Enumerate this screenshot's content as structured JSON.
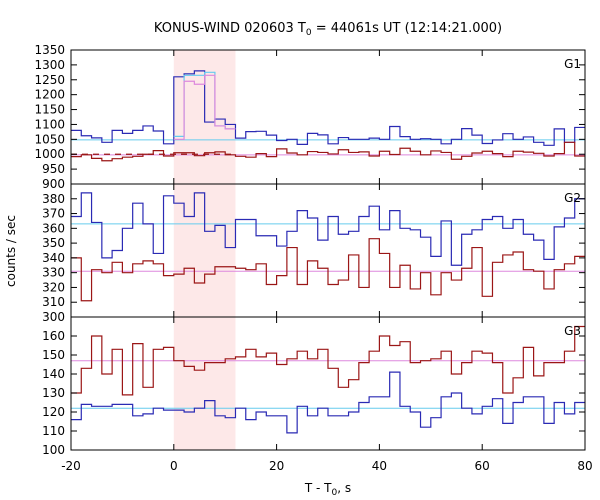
{
  "chart_data": {
    "type": "line",
    "title_prefix": "KONUS-WIND 020603 T",
    "title_sub": "0",
    "title_suffix": " = 44061s UT (12:14:21.000)",
    "xlabel_prefix": "T - T",
    "xlabel_sub": "0",
    "xlabel_suffix": ", s",
    "ylabel": "counts / sec",
    "xlim": [
      -20,
      80
    ],
    "xticks": [
      -20,
      0,
      20,
      40,
      60,
      80
    ],
    "x_step": 2,
    "highlight": {
      "from": 0,
      "to": 12,
      "color": "#fde8e8"
    },
    "grid": false,
    "colors": {
      "blue": "#2a2ab4",
      "red": "#9b1616",
      "cyan": "#66ccee",
      "pink": "#dd88dd"
    },
    "panels": [
      {
        "name": "G1",
        "ylim": [
          900,
          1350
        ],
        "yticks": [
          900,
          950,
          1000,
          1050,
          1100,
          1150,
          1200,
          1250,
          1300,
          1350
        ],
        "bg_blue": 1048,
        "bg_red": 998,
        "red_dashed": {
          "from": -20,
          "to": 12,
          "y": 1000
        },
        "series": [
          {
            "color": "blue",
            "start": -20,
            "values": [
              1080,
              1062,
              1055,
              1040,
              1080,
              1070,
              1080,
              1095,
              1078,
              1035,
              1260,
              1270,
              1280,
              1108,
              1118,
              1100,
              1054,
              1076,
              1077,
              1064,
              1046,
              1050,
              1033,
              1070,
              1065,
              1035,
              1056,
              1050,
              1050,
              1054,
              1050,
              1093,
              1059,
              1050,
              1052,
              1050,
              1035,
              1050,
              1086,
              1064,
              1036,
              1048,
              1069,
              1050,
              1058,
              1040,
              1030,
              1085,
              1040,
              1090
            ]
          },
          {
            "color": "red",
            "start": -20,
            "values": [
              992,
              998,
              986,
              978,
              985,
              990,
              993,
              1000,
              1012,
              994,
              1005,
              1005,
              995,
              1005,
              1008,
              998,
              993,
              990,
              1002,
              992,
              1018,
              1004,
              998,
              1009,
              1006,
              1001,
              1015,
              1006,
              1008,
              994,
              1010,
              999,
              1020,
              1010,
              998,
              1011,
              1006,
              983,
              993,
              1004,
              1010,
              1002,
              992,
              1010,
              1007,
              1003,
              994,
              1002,
              1040,
              994
            ]
          },
          {
            "color": "cyan",
            "start": 0,
            "values": [
              1060,
              1265,
              1265,
              1275,
              1095,
              1085
            ]
          },
          {
            "color": "pink",
            "start": 0,
            "values": [
              1050,
              1245,
              1235,
              1265,
              1095,
              1085
            ]
          }
        ]
      },
      {
        "name": "G2",
        "ylim": [
          300,
          390
        ],
        "yticks": [
          300,
          310,
          320,
          330,
          340,
          350,
          360,
          370,
          380
        ],
        "bg_blue": 363,
        "bg_red": 331,
        "series": [
          {
            "color": "blue",
            "start": -20,
            "values": [
              368,
              384,
              364,
              340,
              345,
              360,
              377,
              363,
              343,
              382,
              377,
              368,
              384,
              358,
              362,
              347,
              366,
              366,
              355,
              355,
              348,
              358,
              372,
              367,
              352,
              368,
              356,
              358,
              368,
              375,
              359,
              372,
              360,
              359,
              354,
              341,
              365,
              335,
              356,
              359,
              366,
              368,
              360,
              366,
              356,
              352,
              339,
              361,
              367,
              380
            ]
          },
          {
            "color": "red",
            "start": -20,
            "values": [
              340,
              311,
              332,
              330,
              337,
              330,
              336,
              338,
              336,
              328,
              329,
              333,
              323,
              329,
              334,
              334,
              333,
              332,
              336,
              322,
              328,
              347,
              322,
              338,
              333,
              322,
              325,
              342,
              320,
              353,
              343,
              320,
              335,
              319,
              330,
              315,
              330,
              325,
              333,
              347,
              314,
              337,
              342,
              344,
              332,
              331,
              319,
              332,
              336,
              341
            ]
          }
        ]
      },
      {
        "name": "G3",
        "ylim": [
          100,
          170
        ],
        "yticks": [
          100,
          110,
          120,
          130,
          140,
          150,
          160
        ],
        "bg_blue": 122,
        "bg_red": 147,
        "series": [
          {
            "color": "blue",
            "start": -20,
            "values": [
              116,
              124,
              123,
              123,
              124,
              124,
              118,
              119,
              122,
              121,
              121,
              120,
              122,
              126,
              118,
              117,
              122,
              116,
              120,
              118,
              118,
              109,
              123,
              118,
              122,
              118,
              118,
              120,
              125,
              128,
              128,
              141,
              123,
              120,
              112,
              117,
              128,
              130,
              122,
              119,
              123,
              127,
              114,
              125,
              128,
              128,
              114,
              125,
              119,
              125
            ]
          },
          {
            "color": "red",
            "start": -20,
            "values": [
              130,
              143,
              160,
              140,
              153,
              129,
              156,
              133,
              153,
              154,
              147,
              144,
              142,
              146,
              146,
              148,
              149,
              153,
              149,
              151,
              145,
              148,
              152,
              148,
              153,
              143,
              133,
              137,
              146,
              152,
              160,
              155,
              157,
              146,
              147,
              148,
              152,
              140,
              146,
              152,
              151,
              146,
              130,
              138,
              154,
              139,
              146,
              146,
              152,
              165
            ]
          }
        ]
      }
    ]
  }
}
